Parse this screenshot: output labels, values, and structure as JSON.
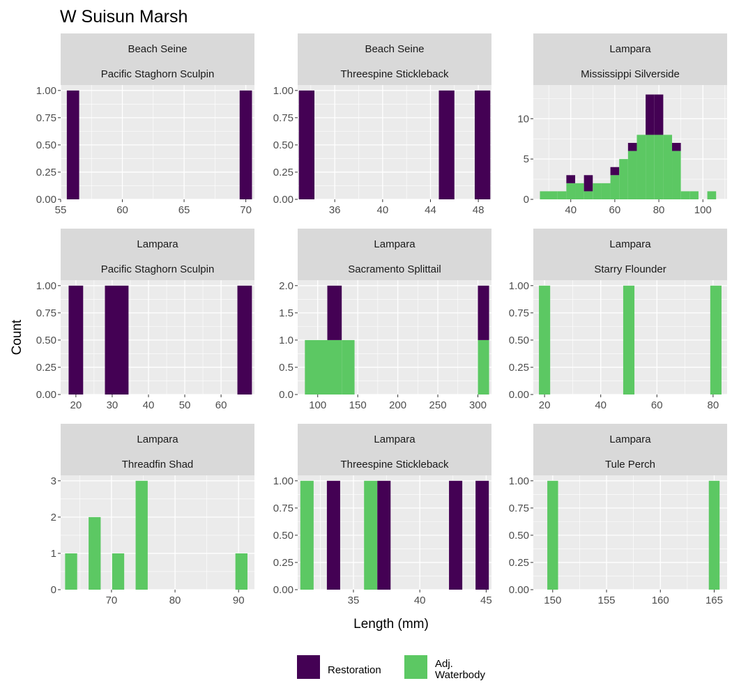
{
  "title": "W Suisun Marsh",
  "xlabel": "Length (mm)",
  "ylabel": "Count",
  "colors": {
    "restoration": "#440154",
    "adjacent": "#5cc863",
    "panel_bg": "#ebebeb",
    "strip_bg": "#d9d9d9",
    "grid": "#ffffff"
  },
  "legend": {
    "position": "bottom",
    "items": [
      {
        "key": "restoration",
        "lines": [
          "Restoration"
        ]
      },
      {
        "key": "adjacent",
        "lines": [
          "Adj.",
          "Waterbody"
        ]
      }
    ]
  },
  "chart_data": [
    {
      "type": "bar",
      "gear": "Beach Seine",
      "species": "Pacific Staghorn Sculpin",
      "xlim": [
        55,
        70.7
      ],
      "ylim": [
        0,
        1
      ],
      "xticks": [
        55,
        60,
        65,
        70
      ],
      "yticks": [
        "0.00",
        "0.25",
        "0.50",
        "0.75",
        "1.00"
      ],
      "bars": [
        {
          "x0": 55.5,
          "x1": 56.5,
          "restoration": 1,
          "adjacent": 0
        },
        {
          "x0": 69.5,
          "x1": 70.5,
          "restoration": 1,
          "adjacent": 0
        }
      ]
    },
    {
      "type": "bar",
      "gear": "Beach Seine",
      "species": "Threespine Stickleback",
      "xlim": [
        32.9,
        49.1
      ],
      "ylim": [
        0,
        1
      ],
      "xticks": [
        36,
        40,
        44,
        48
      ],
      "yticks": [
        "0.00",
        "0.25",
        "0.50",
        "0.75",
        "1.00"
      ],
      "bars": [
        {
          "x0": 33.0,
          "x1": 34.3,
          "restoration": 1,
          "adjacent": 0
        },
        {
          "x0": 44.7,
          "x1": 46.0,
          "restoration": 1,
          "adjacent": 0
        },
        {
          "x0": 47.7,
          "x1": 49.0,
          "restoration": 1,
          "adjacent": 0
        }
      ]
    },
    {
      "type": "bar",
      "gear": "Lampara",
      "species": "Mississippi Silverside",
      "xlim": [
        23,
        111
      ],
      "ylim": [
        0,
        13.5
      ],
      "xticks": [
        40,
        60,
        80,
        100
      ],
      "yticks": [
        "0",
        "5",
        "10"
      ],
      "bars": [
        {
          "x0": 26,
          "x1": 34,
          "restoration": 0,
          "adjacent": 1
        },
        {
          "x0": 34,
          "x1": 38,
          "restoration": 0,
          "adjacent": 1
        },
        {
          "x0": 38,
          "x1": 42,
          "restoration": 1,
          "adjacent": 2
        },
        {
          "x0": 42,
          "x1": 46,
          "restoration": 0,
          "adjacent": 2
        },
        {
          "x0": 46,
          "x1": 50,
          "restoration": 2,
          "adjacent": 1
        },
        {
          "x0": 50,
          "x1": 54,
          "restoration": 0,
          "adjacent": 2
        },
        {
          "x0": 54,
          "x1": 58,
          "restoration": 0,
          "adjacent": 2
        },
        {
          "x0": 58,
          "x1": 62,
          "restoration": 1,
          "adjacent": 3
        },
        {
          "x0": 62,
          "x1": 66,
          "restoration": 0,
          "adjacent": 5
        },
        {
          "x0": 66,
          "x1": 70,
          "restoration": 1,
          "adjacent": 6
        },
        {
          "x0": 70,
          "x1": 74,
          "restoration": 0,
          "adjacent": 8
        },
        {
          "x0": 74,
          "x1": 78,
          "restoration": 5,
          "adjacent": 8
        },
        {
          "x0": 78,
          "x1": 82,
          "restoration": 5,
          "adjacent": 8
        },
        {
          "x0": 82,
          "x1": 86,
          "restoration": 0,
          "adjacent": 8
        },
        {
          "x0": 86,
          "x1": 90,
          "restoration": 1,
          "adjacent": 6
        },
        {
          "x0": 90,
          "x1": 94,
          "restoration": 0,
          "adjacent": 1
        },
        {
          "x0": 94,
          "x1": 98,
          "restoration": 0,
          "adjacent": 1
        },
        {
          "x0": 102,
          "x1": 106,
          "restoration": 0,
          "adjacent": 1
        }
      ]
    },
    {
      "type": "bar",
      "gear": "Lampara",
      "species": "Pacific Staghorn Sculpin",
      "xlim": [
        15.8,
        69.2
      ],
      "ylim": [
        0,
        1
      ],
      "xticks": [
        20,
        30,
        40,
        50,
        60
      ],
      "yticks": [
        "0.00",
        "0.25",
        "0.50",
        "0.75",
        "1.00"
      ],
      "bars": [
        {
          "x0": 18.0,
          "x1": 22.0,
          "restoration": 1,
          "adjacent": 0
        },
        {
          "x0": 28.0,
          "x1": 34.5,
          "restoration": 1,
          "adjacent": 0
        },
        {
          "x0": 64.5,
          "x1": 68.5,
          "restoration": 1,
          "adjacent": 0
        }
      ]
    },
    {
      "type": "bar",
      "gear": "Lampara",
      "species": "Sacramento Splittail",
      "xlim": [
        75,
        317
      ],
      "ylim": [
        0,
        2
      ],
      "xticks": [
        100,
        150,
        200,
        250,
        300
      ],
      "yticks": [
        "0.0",
        "0.5",
        "1.0",
        "1.5",
        "2.0"
      ],
      "bars": [
        {
          "x0": 84,
          "x1": 112,
          "restoration": 0,
          "adjacent": 1
        },
        {
          "x0": 112,
          "x1": 130,
          "restoration": 1,
          "adjacent": 1
        },
        {
          "x0": 130,
          "x1": 146,
          "restoration": 0,
          "adjacent": 1
        },
        {
          "x0": 300,
          "x1": 314,
          "restoration": 1,
          "adjacent": 1
        }
      ]
    },
    {
      "type": "bar",
      "gear": "Lampara",
      "species": "Starry Flounder",
      "xlim": [
        16,
        85
      ],
      "ylim": [
        0,
        1
      ],
      "xticks": [
        20,
        40,
        60,
        80
      ],
      "yticks": [
        "0.00",
        "0.25",
        "0.50",
        "0.75",
        "1.00"
      ],
      "bars": [
        {
          "x0": 18,
          "x1": 22,
          "restoration": 0,
          "adjacent": 1
        },
        {
          "x0": 48,
          "x1": 52,
          "restoration": 0,
          "adjacent": 1
        },
        {
          "x0": 79,
          "x1": 83,
          "restoration": 0,
          "adjacent": 1
        }
      ]
    },
    {
      "type": "bar",
      "gear": "Lampara",
      "species": "Threadfin Shad",
      "xlim": [
        62,
        92.5
      ],
      "ylim": [
        0,
        3
      ],
      "xticks": [
        70,
        80,
        90
      ],
      "yticks": [
        "0",
        "1",
        "2",
        "3"
      ],
      "bars": [
        {
          "x0": 62.7,
          "x1": 64.6,
          "restoration": 0,
          "adjacent": 1
        },
        {
          "x0": 66.4,
          "x1": 68.3,
          "restoration": 0,
          "adjacent": 2
        },
        {
          "x0": 70.1,
          "x1": 72.0,
          "restoration": 0,
          "adjacent": 1
        },
        {
          "x0": 73.8,
          "x1": 75.7,
          "restoration": 0,
          "adjacent": 3
        },
        {
          "x0": 89.5,
          "x1": 91.4,
          "restoration": 0,
          "adjacent": 1
        }
      ]
    },
    {
      "type": "bar",
      "gear": "Lampara",
      "species": "Threespine Stickleback",
      "xlim": [
        30.8,
        45.4
      ],
      "ylim": [
        0,
        1
      ],
      "xticks": [
        35,
        40,
        45
      ],
      "yticks": [
        "0.00",
        "0.25",
        "0.50",
        "0.75",
        "1.00"
      ],
      "bars": [
        {
          "x0": 31.0,
          "x1": 32.0,
          "restoration": 0,
          "adjacent": 1
        },
        {
          "x0": 33.0,
          "x1": 34.0,
          "restoration": 1,
          "adjacent": 0
        },
        {
          "x0": 35.8,
          "x1": 36.8,
          "restoration": 0,
          "adjacent": 1
        },
        {
          "x0": 36.8,
          "x1": 37.8,
          "restoration": 1,
          "adjacent": 0
        },
        {
          "x0": 42.2,
          "x1": 43.2,
          "restoration": 1,
          "adjacent": 0
        },
        {
          "x0": 44.2,
          "x1": 45.2,
          "restoration": 1,
          "adjacent": 0
        }
      ]
    },
    {
      "type": "bar",
      "gear": "Lampara",
      "species": "Tule Perch",
      "xlim": [
        148.2,
        166.2
      ],
      "ylim": [
        0,
        1
      ],
      "xticks": [
        150,
        155,
        160,
        165
      ],
      "yticks": [
        "0.00",
        "0.25",
        "0.50",
        "0.75",
        "1.00"
      ],
      "bars": [
        {
          "x0": 149.5,
          "x1": 150.5,
          "restoration": 0,
          "adjacent": 1
        },
        {
          "x0": 164.5,
          "x1": 165.5,
          "restoration": 0,
          "adjacent": 1
        }
      ]
    }
  ]
}
